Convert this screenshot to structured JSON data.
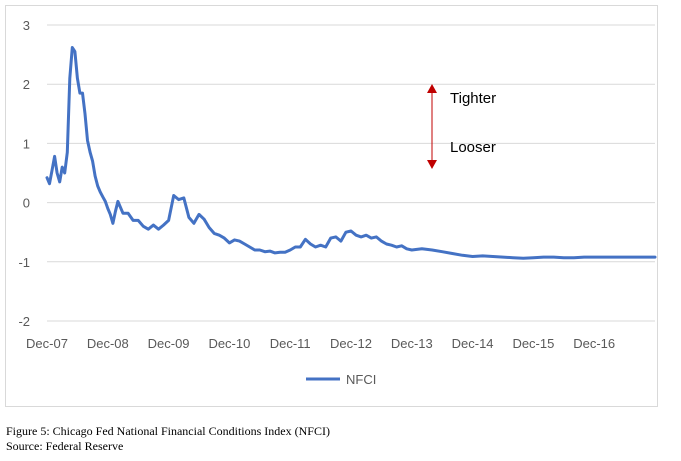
{
  "chart_data": {
    "type": "line",
    "title": "",
    "xlabel": "",
    "ylabel": "",
    "ylim": [
      -2,
      3
    ],
    "yticks": [
      3,
      2,
      1,
      0,
      -1,
      -2
    ],
    "x_tick_labels": [
      "Dec-07",
      "Dec-08",
      "Dec-09",
      "Dec-10",
      "Dec-11",
      "Dec-12",
      "Dec-13",
      "Dec-14",
      "Dec-15",
      "Dec-16"
    ],
    "grid": "horizontal",
    "legend": "bottom",
    "series": [
      {
        "name": "NFCI",
        "color": "#4472c4",
        "x": [
          0,
          0.5,
          1,
          1.5,
          2,
          2.5,
          3,
          3.5,
          4,
          4.5,
          5,
          5.5,
          6,
          6.5,
          7,
          7.5,
          8,
          8.5,
          9,
          9.5,
          10,
          10.5,
          11,
          11.5,
          12,
          12.5,
          13,
          13.5,
          14,
          15,
          16,
          17,
          18,
          19,
          20,
          21,
          22,
          23,
          24,
          25,
          26,
          27,
          28,
          29,
          30,
          31,
          32,
          33,
          34,
          35,
          36,
          37,
          38,
          39,
          40,
          41,
          42,
          43,
          44,
          45,
          46,
          47,
          48,
          49,
          50,
          51,
          52,
          53,
          54,
          55,
          56,
          57,
          58,
          59,
          60,
          61,
          62,
          63,
          64,
          65,
          66,
          67,
          68,
          69,
          70,
          71,
          72,
          74,
          76,
          78,
          80,
          82,
          84,
          86,
          88,
          90,
          92,
          94,
          96,
          98,
          100,
          102,
          104,
          106,
          108,
          110,
          112,
          114,
          116,
          118,
          120
        ],
        "values": [
          0.42,
          0.32,
          0.55,
          0.78,
          0.5,
          0.35,
          0.6,
          0.5,
          0.85,
          2.1,
          2.62,
          2.55,
          2.1,
          1.85,
          1.85,
          1.5,
          1.05,
          0.85,
          0.7,
          0.45,
          0.28,
          0.18,
          0.1,
          0.02,
          -0.1,
          -0.2,
          -0.35,
          -0.15,
          0.02,
          -0.18,
          -0.18,
          -0.3,
          -0.3,
          -0.4,
          -0.45,
          -0.38,
          -0.45,
          -0.38,
          -0.3,
          0.12,
          0.05,
          0.08,
          -0.25,
          -0.35,
          -0.2,
          -0.28,
          -0.42,
          -0.52,
          -0.55,
          -0.6,
          -0.68,
          -0.63,
          -0.65,
          -0.7,
          -0.75,
          -0.8,
          -0.8,
          -0.83,
          -0.82,
          -0.85,
          -0.84,
          -0.84,
          -0.8,
          -0.75,
          -0.75,
          -0.62,
          -0.7,
          -0.75,
          -0.72,
          -0.75,
          -0.6,
          -0.58,
          -0.65,
          -0.5,
          -0.48,
          -0.55,
          -0.58,
          -0.55,
          -0.6,
          -0.58,
          -0.65,
          -0.7,
          -0.72,
          -0.75,
          -0.73,
          -0.78,
          -0.8,
          -0.78,
          -0.8,
          -0.83,
          -0.86,
          -0.89,
          -0.91,
          -0.9,
          -0.91,
          -0.92,
          -0.93,
          -0.94,
          -0.93,
          -0.92,
          -0.92,
          -0.93,
          -0.93,
          -0.92,
          -0.92,
          -0.92,
          -0.92,
          -0.92,
          -0.92,
          -0.92,
          -0.92
        ]
      }
    ],
    "annotations": [
      {
        "text": "Tighter",
        "direction": "up"
      },
      {
        "text": "Looser",
        "direction": "down"
      }
    ],
    "arrow_color": "#c00000"
  },
  "caption": {
    "line1": "Figure 5: Chicago Fed National Financial Conditions Index (NFCI)",
    "line2": "Source: Federal Reserve"
  }
}
